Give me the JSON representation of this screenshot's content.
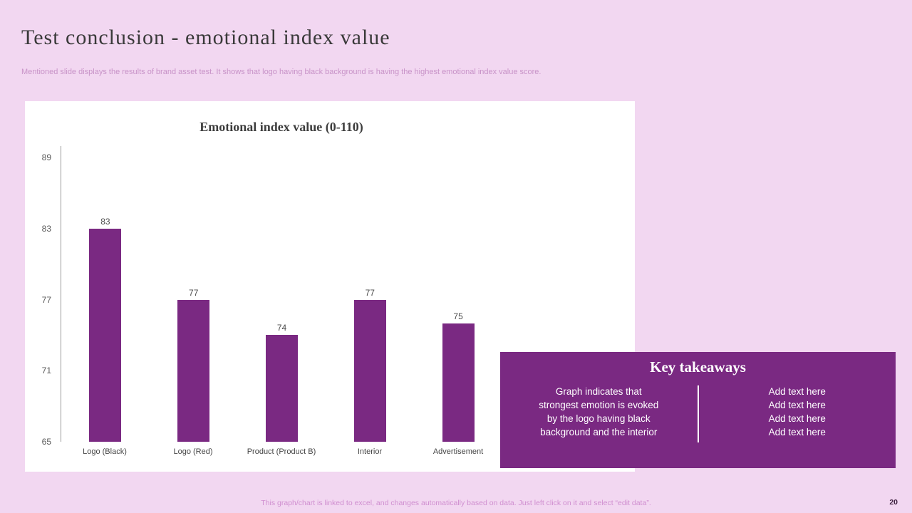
{
  "slide": {
    "title": "Test conclusion - emotional index value",
    "subtitle": "Mentioned slide displays the results of brand asset test. It shows that logo having black background is having the highest emotional index value score.",
    "footer_note": "This graph/chart is linked to excel, and changes automatically based on data. Just left click on it and select “edit data”.",
    "page_number": "20"
  },
  "chart_data": {
    "type": "bar",
    "title": "Emotional index value (0-110)",
    "categories": [
      "Logo (Black)",
      "Logo (Red)",
      "Product (Product B)",
      "Interior",
      "Advertisement"
    ],
    "values": [
      83,
      77,
      74,
      77,
      75
    ],
    "xlabel": "",
    "ylabel": "",
    "ylim": [
      65,
      89
    ],
    "y_ticks": [
      89,
      83,
      77,
      71,
      65
    ],
    "bar_color": "#7a2982",
    "grid": false,
    "legend": "none",
    "value_labels": true
  },
  "key_takeaways": {
    "title": "Key takeaways",
    "left_lines": [
      "Graph indicates that",
      "strongest emotion is evoked",
      "by the logo having black",
      "background and the interior"
    ],
    "right_items": [
      "Add text here",
      "Add text here",
      "Add text here",
      "Add text here"
    ]
  },
  "colors": {
    "slide_background": "#f2d7f1",
    "accent_purple": "#7a2982",
    "subtitle_pink": "#c893c8",
    "footer_pink": "#d08fd0"
  }
}
